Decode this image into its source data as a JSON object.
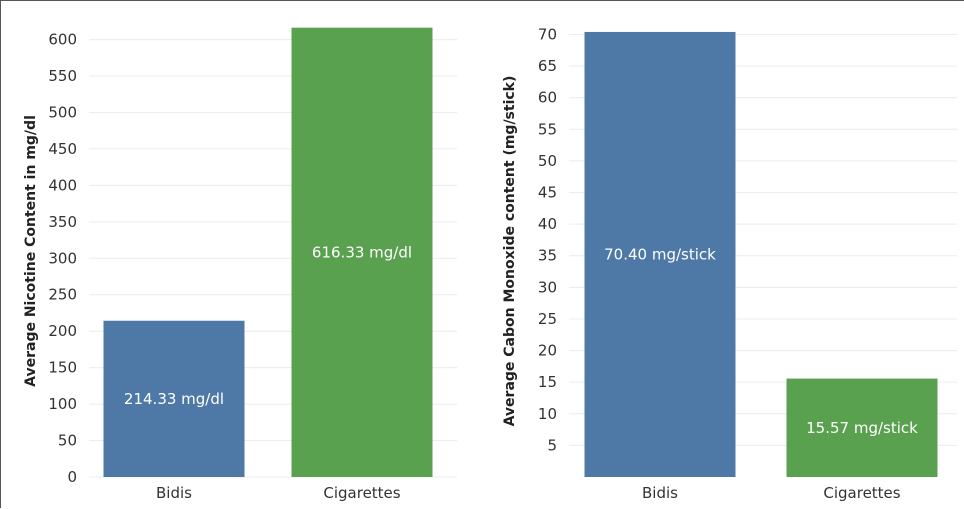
{
  "colors": {
    "blue": "#4e79a7",
    "green": "#59a14f"
  },
  "chart_data": [
    {
      "type": "bar",
      "ylabel": "Average Nicotine Content in mg/dl",
      "categories": [
        "Bidis",
        "Cigarettes"
      ],
      "values": [
        214.33,
        616.33
      ],
      "data_labels": [
        "214.33 mg/dl",
        "616.33 mg/dl"
      ],
      "bar_colors": [
        "#4e79a7",
        "#59a14f"
      ],
      "yticks": [
        0,
        50,
        100,
        150,
        200,
        250,
        300,
        350,
        400,
        450,
        500,
        550,
        600
      ],
      "ylim": [
        0,
        620
      ],
      "grid": true
    },
    {
      "type": "bar",
      "ylabel": "Average Cabon Monoxide content (mg/stick)",
      "categories": [
        "Bidis",
        "Cigarettes"
      ],
      "values": [
        70.4,
        15.57
      ],
      "data_labels": [
        "70.40 mg/stick",
        "15.57 mg/stick"
      ],
      "bar_colors": [
        "#4e79a7",
        "#59a14f"
      ],
      "yticks": [
        5,
        10,
        15,
        20,
        25,
        30,
        35,
        40,
        45,
        50,
        55,
        60,
        65,
        70
      ],
      "ylim": [
        0,
        71.5
      ],
      "grid": true
    }
  ]
}
